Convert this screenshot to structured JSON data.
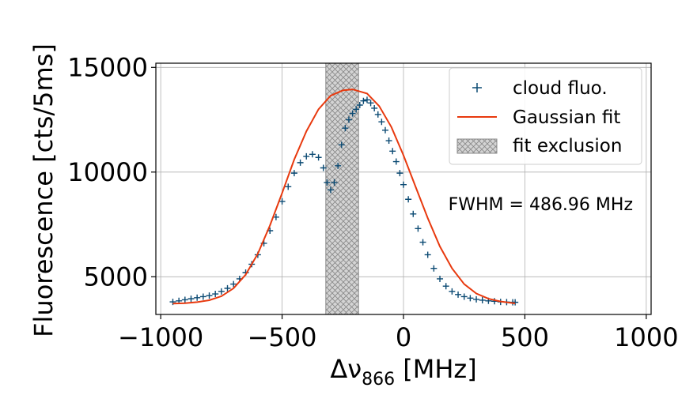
{
  "chart_data": {
    "type": "scatter",
    "title": "",
    "xlabel": "Δν",
    "xlabel_sub": "866",
    "xlabel_unit": " [MHz]",
    "ylabel": "Fluorescence [cts/5ms]",
    "xlim": [
      -1020,
      1020
    ],
    "ylim": [
      3200,
      15200
    ],
    "xticks": [
      -1000,
      -500,
      0,
      500,
      1000
    ],
    "xtick_labels": [
      "−1000",
      "−500",
      "0",
      "500",
      "1000"
    ],
    "yticks": [
      5000,
      10000,
      15000
    ],
    "ytick_labels": [
      "5000",
      "10000",
      "15000"
    ],
    "grid": true,
    "legend_position": "top-right",
    "annotation": "FWHM = 486.96 MHz",
    "exclusion_region": {
      "label": "fit exclusion",
      "x": [
        -320,
        -185
      ]
    },
    "series": [
      {
        "name": "cloud fluo.",
        "kind": "scatter",
        "marker": "+",
        "color": "#0b4a73",
        "x": [
          -950,
          -925,
          -900,
          -875,
          -850,
          -825,
          -800,
          -775,
          -750,
          -725,
          -700,
          -675,
          -650,
          -625,
          -600,
          -575,
          -550,
          -525,
          -500,
          -475,
          -450,
          -425,
          -400,
          -375,
          -350,
          -330,
          -315,
          -300,
          -285,
          -270,
          -255,
          -240,
          -225,
          -210,
          -195,
          -180,
          -165,
          -150,
          -135,
          -120,
          -105,
          -90,
          -75,
          -60,
          -45,
          -30,
          -15,
          0,
          20,
          40,
          60,
          80,
          100,
          125,
          150,
          175,
          200,
          225,
          250,
          275,
          300,
          325,
          350,
          375,
          400,
          425,
          450,
          460
        ],
        "y": [
          3800,
          3850,
          3900,
          3950,
          4000,
          4050,
          4100,
          4180,
          4300,
          4450,
          4650,
          4900,
          5200,
          5600,
          6050,
          6600,
          7200,
          7850,
          8600,
          9300,
          9950,
          10450,
          10750,
          10850,
          10700,
          10200,
          9500,
          9150,
          9500,
          10300,
          11300,
          12100,
          12500,
          12800,
          13000,
          13200,
          13400,
          13450,
          13300,
          13050,
          12750,
          12400,
          12000,
          11500,
          11000,
          10500,
          9950,
          9400,
          8700,
          8000,
          7300,
          6650,
          6050,
          5400,
          4900,
          4550,
          4300,
          4150,
          4050,
          3980,
          3920,
          3880,
          3850,
          3830,
          3800,
          3790,
          3780,
          3780
        ]
      },
      {
        "name": "Gaussian fit",
        "kind": "line",
        "color": "#e8390e",
        "x": [
          -950,
          -900,
          -850,
          -800,
          -750,
          -700,
          -650,
          -600,
          -550,
          -500,
          -450,
          -400,
          -350,
          -300,
          -250,
          -210,
          -150,
          -100,
          -50,
          0,
          50,
          100,
          150,
          200,
          250,
          300,
          350,
          400,
          460
        ],
        "y": [
          3720,
          3740,
          3790,
          3880,
          4070,
          4450,
          5100,
          6100,
          7450,
          9000,
          10600,
          11950,
          13000,
          13650,
          13900,
          13950,
          13750,
          13150,
          12150,
          10800,
          9300,
          7800,
          6450,
          5400,
          4650,
          4200,
          3950,
          3820,
          3730
        ]
      }
    ]
  }
}
